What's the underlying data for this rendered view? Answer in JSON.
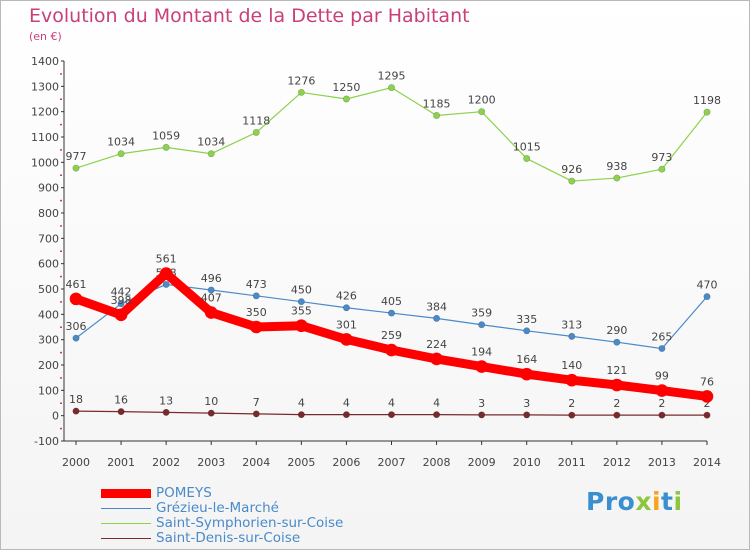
{
  "title": "Evolution du Montant de la Dette par Habitant",
  "unit_label": "(en €)",
  "logo": {
    "text": "Proxiti",
    "colors": [
      "#3a8fd0",
      "#8cc63f",
      "#f7a51c"
    ]
  },
  "chart_data": {
    "type": "line",
    "title": "Evolution du Montant de la Dette par Habitant",
    "ylabel": "(en €)",
    "xlabel": "",
    "x": [
      "2000",
      "2001",
      "2002",
      "2003",
      "2004",
      "2005",
      "2006",
      "2007",
      "2008",
      "2009",
      "2010",
      "2011",
      "2012",
      "2013",
      "2014"
    ],
    "ylim": [
      -100,
      1400
    ],
    "yticks": [
      "-100",
      "0",
      "100",
      "200",
      "300",
      "400",
      "500",
      "600",
      "700",
      "800",
      "900",
      "1000",
      "1100",
      "1200",
      "1300",
      "1400"
    ],
    "grid": false,
    "legend_position": "bottom-left",
    "series": [
      {
        "name": "POMEYS",
        "color": "#ff0000",
        "emphasis": "bold",
        "values": [
          461,
          398,
          561,
          407,
          350,
          355,
          301,
          259,
          224,
          194,
          164,
          140,
          121,
          99,
          76
        ],
        "labels": [
          "461",
          "398",
          "561",
          "407",
          "350",
          "355",
          "301",
          "259",
          "224",
          "194",
          "164",
          "140",
          "121",
          "99",
          "76"
        ]
      },
      {
        "name": "Grézieu-le-Marché",
        "color": "#4a8ac9",
        "values": [
          306,
          442,
          518,
          496,
          473,
          450,
          426,
          405,
          384,
          359,
          335,
          313,
          290,
          265,
          470
        ],
        "labels": [
          "306",
          "442",
          "518",
          "496",
          "473",
          "450",
          "426",
          "405",
          "384",
          "359",
          "335",
          "313",
          "290",
          "265",
          "470"
        ]
      },
      {
        "name": "Saint-Symphorien-sur-Coise",
        "color": "#8cd24c",
        "values": [
          977,
          1034,
          1059,
          1034,
          1118,
          1276,
          1250,
          1295,
          1185,
          1200,
          1015,
          926,
          938,
          973,
          1198
        ],
        "labels": [
          "977",
          "1034",
          "1059",
          "1034",
          "1118",
          "1276",
          "1250",
          "1295",
          "1185",
          "1200",
          "1015",
          "926",
          "938",
          "973",
          "1198"
        ]
      },
      {
        "name": "Saint-Denis-sur-Coise",
        "color": "#7a2a2a",
        "values": [
          18,
          16,
          13,
          10,
          7,
          4,
          4,
          4,
          4,
          3,
          3,
          2,
          2,
          2,
          2
        ],
        "labels": [
          "18",
          "16",
          "13",
          "10",
          "7",
          "4",
          "4",
          "4",
          "4",
          "3",
          "3",
          "2",
          "2",
          "2",
          "2"
        ]
      }
    ]
  }
}
